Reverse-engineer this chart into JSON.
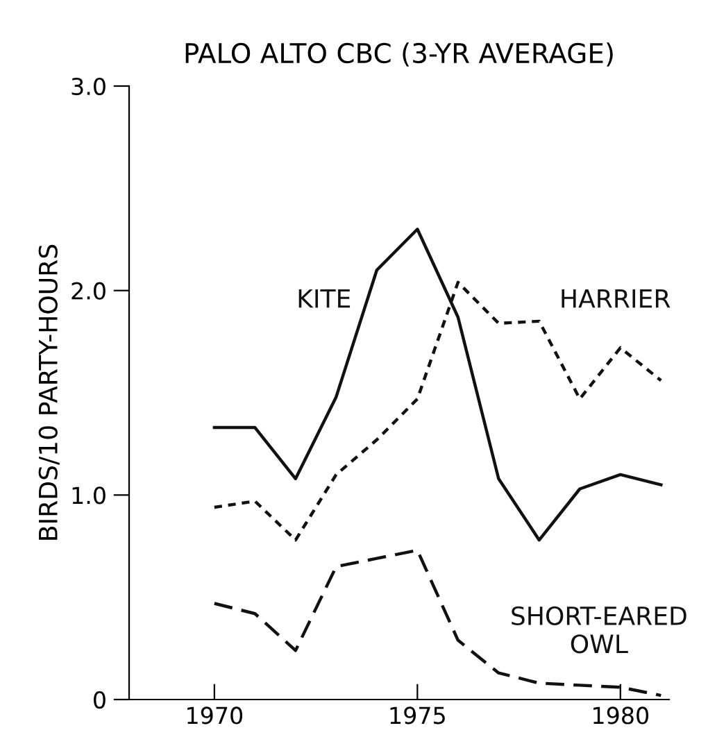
{
  "chart_data": {
    "type": "line",
    "title": "PALO ALTO CBC (3-YR AVERAGE)",
    "ylabel": "BIRDS/10 PARTY-HOURS",
    "x": [
      1970,
      1971,
      1972,
      1973,
      1974,
      1975,
      1976,
      1977,
      1978,
      1979,
      1980,
      1981
    ],
    "series": [
      {
        "name": "KITE",
        "color": "#111111",
        "line_style": "solid",
        "values": [
          1.33,
          1.33,
          1.08,
          1.48,
          2.1,
          2.3,
          1.87,
          1.08,
          0.78,
          1.03,
          1.1,
          1.05
        ]
      },
      {
        "name": "HARRIER",
        "color": "#111111",
        "line_style": "dashed",
        "values": [
          0.94,
          0.97,
          0.78,
          1.1,
          1.27,
          1.47,
          2.04,
          1.84,
          1.85,
          1.47,
          1.72,
          1.56
        ]
      },
      {
        "name": "SHORT-EARED OWL",
        "color": "#111111",
        "line_style": "dashed",
        "values": [
          0.47,
          0.42,
          0.24,
          0.65,
          0.69,
          0.73,
          0.29,
          0.13,
          0.08,
          0.07,
          0.06,
          0.02
        ]
      }
    ],
    "xlim": [
      1967.9,
      1981.2
    ],
    "ylim": [
      0,
      3.0
    ],
    "xticks": [
      1970,
      1975,
      1980
    ],
    "yticks": [
      0,
      {
        "value": 1,
        "label": "1.0"
      },
      {
        "value": 2,
        "label": "2.0"
      },
      {
        "value": 3,
        "label": "3.0"
      }
    ],
    "grid": false,
    "legend": false,
    "marker": "none"
  }
}
